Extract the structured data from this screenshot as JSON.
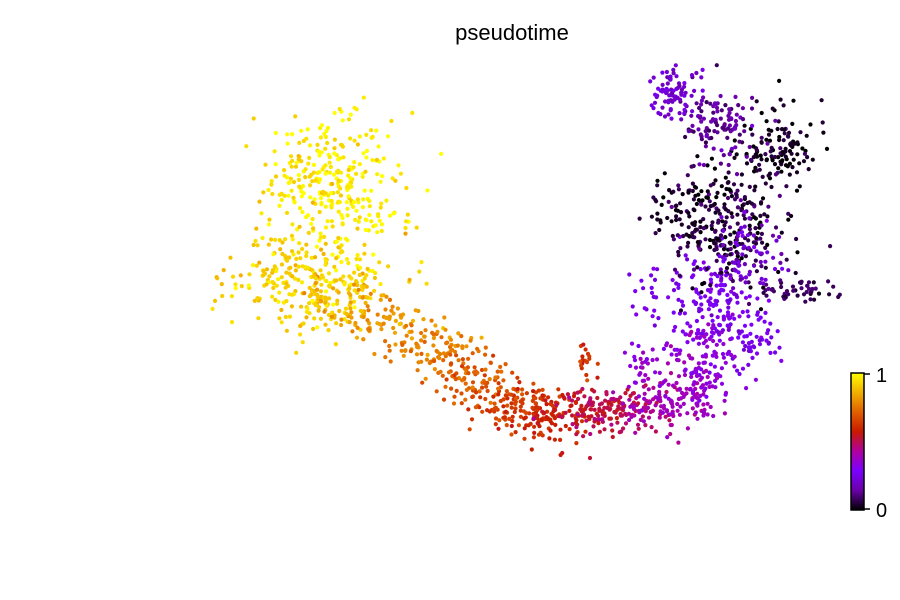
{
  "chart_data": {
    "type": "scatter",
    "title": "pseudotime",
    "xlabel": "",
    "ylabel": "",
    "xlim": [
      0,
      100
    ],
    "ylim": [
      0,
      100
    ],
    "grid": false,
    "axes_visible": false,
    "colormap": "gnuplot",
    "colormap_stops": [
      "#000000",
      "#6a00a8",
      "#7b00ff",
      "#b000a0",
      "#c81a00",
      "#e06000",
      "#f2b000",
      "#ffff00"
    ],
    "colorbar": {
      "range": [
        0,
        1
      ],
      "tick_labels": [
        "0",
        "1"
      ],
      "placement": "right"
    },
    "clusters": [
      {
        "x": 43,
        "y": 78,
        "sx": 4.6,
        "sy": 7.5,
        "t": 0.97,
        "n": 230
      },
      {
        "x": 37,
        "y": 60,
        "sx": 5.5,
        "sy": 5.0,
        "t": 0.92,
        "n": 260
      },
      {
        "x": 37,
        "y": 79,
        "sx": 3.2,
        "sy": 4.2,
        "t": 0.95,
        "n": 80
      },
      {
        "x": 44,
        "y": 56,
        "sx": 3.0,
        "sy": 3.0,
        "t": 0.88,
        "n": 60
      },
      {
        "x": 50,
        "y": 52,
        "sx": 3.5,
        "sy": 2.6,
        "t": 0.82,
        "n": 70
      },
      {
        "x": 56,
        "y": 47,
        "sx": 3.5,
        "sy": 2.6,
        "t": 0.76,
        "n": 80
      },
      {
        "x": 62,
        "y": 41,
        "sx": 3.2,
        "sy": 2.6,
        "t": 0.7,
        "n": 90
      },
      {
        "x": 68,
        "y": 35,
        "sx": 3.2,
        "sy": 2.6,
        "t": 0.64,
        "n": 100
      },
      {
        "x": 74,
        "y": 33,
        "sx": 3.2,
        "sy": 2.6,
        "t": 0.58,
        "n": 110
      },
      {
        "x": 80.5,
        "y": 34,
        "sx": 2.8,
        "sy": 2.4,
        "t": 0.52,
        "n": 90
      },
      {
        "x": 79,
        "y": 44,
        "sx": 0.8,
        "sy": 1.5,
        "t": 0.62,
        "n": 18
      },
      {
        "x": 86,
        "y": 34,
        "sx": 2.6,
        "sy": 2.2,
        "t": 0.46,
        "n": 70
      },
      {
        "x": 91,
        "y": 35,
        "sx": 2.6,
        "sy": 2.4,
        "t": 0.4,
        "n": 80
      },
      {
        "x": 95.5,
        "y": 39,
        "sx": 2.4,
        "sy": 3.0,
        "t": 0.36,
        "n": 80
      },
      {
        "x": 97,
        "y": 47,
        "sx": 2.4,
        "sy": 3.4,
        "t": 0.33,
        "n": 70
      },
      {
        "x": 99,
        "y": 56,
        "sx": 2.3,
        "sy": 4.2,
        "t": 0.28,
        "n": 90
      },
      {
        "x": 88,
        "y": 44,
        "sx": 2.2,
        "sy": 3.5,
        "t": 0.34,
        "n": 40
      },
      {
        "x": 91,
        "y": 58,
        "sx": 2.5,
        "sy": 4.0,
        "t": 0.27,
        "n": 40
      },
      {
        "x": 100,
        "y": 70,
        "sx": 4.0,
        "sy": 6.0,
        "t": 0.05,
        "n": 240
      },
      {
        "x": 94,
        "y": 74,
        "sx": 3.0,
        "sy": 4.0,
        "t": 0.03,
        "n": 70
      },
      {
        "x": 107,
        "y": 86,
        "sx": 3.0,
        "sy": 3.5,
        "t": 0.02,
        "n": 130
      },
      {
        "x": 98,
        "y": 91,
        "sx": 3.0,
        "sy": 3.5,
        "t": 0.14,
        "n": 110
      },
      {
        "x": 92,
        "y": 98,
        "sx": 1.8,
        "sy": 2.5,
        "t": 0.22,
        "n": 80
      },
      {
        "x": 110,
        "y": 58,
        "sx": 3.0,
        "sy": 1.2,
        "t": 0.08,
        "n": 50
      },
      {
        "x": 103,
        "y": 64,
        "sx": 2.5,
        "sy": 4.0,
        "t": 0.22,
        "n": 70
      },
      {
        "x": 103,
        "y": 48,
        "sx": 2.0,
        "sy": 4.0,
        "t": 0.27,
        "n": 60
      }
    ]
  }
}
